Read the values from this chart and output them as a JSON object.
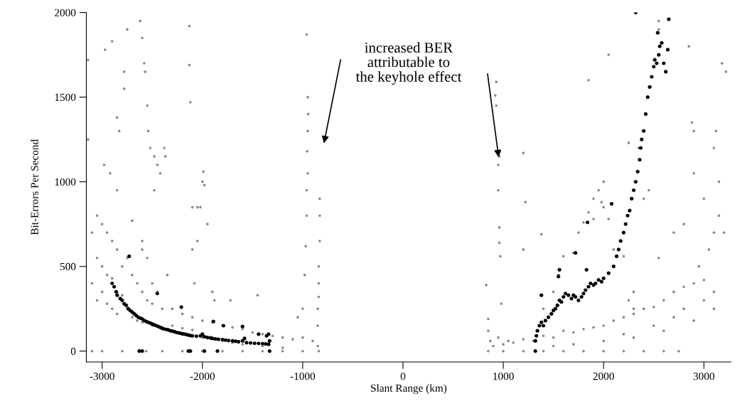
{
  "chart_data": {
    "type": "scatter",
    "xlabel": "Slant Range (km)",
    "ylabel": "Bit-Errors Per Second",
    "xlim": [
      -3157,
      3270
    ],
    "ylim": [
      -64,
      2000
    ],
    "xticks": [
      -3000,
      -2000,
      -1000,
      0,
      1000,
      2000,
      3000
    ],
    "yticks": [
      0,
      500,
      1000,
      1500,
      2000
    ],
    "grid": false,
    "legend": false,
    "marker": "circle",
    "annotations": [
      "increased BER\nattributable to\nthe keyhole effect"
    ],
    "series": [
      {
        "color": "#8c8c8c",
        "x": [
          -3100,
          -3100,
          -3050,
          -3050,
          -3050,
          -3000,
          -3000,
          -3000,
          -2950,
          -2950,
          -2950,
          -2900,
          -2900,
          -2900,
          -2850,
          -2850,
          -2850,
          -2800,
          -2800,
          -2750,
          -2750,
          -2700,
          -2700,
          -2650,
          -2650,
          -2600,
          -2600,
          -2600,
          -2550,
          -2500,
          -2500,
          -2450,
          -2400,
          -2400,
          -2300,
          -2300,
          -2200,
          -2200,
          -2100,
          -2100,
          -2000,
          -2000,
          -1900,
          -1900,
          -1800,
          -1800,
          -1700,
          -1700,
          -1600,
          -1600,
          -1500,
          -1400,
          -1400,
          -1300,
          -1200,
          -1200,
          -1100,
          -1000,
          -900,
          -850,
          -850,
          -850,
          -3100,
          -3000,
          -2800,
          -2560,
          -2400,
          -2200,
          -2000,
          -1800,
          -1600,
          -1400,
          -1200,
          -1000,
          -840,
          -3140,
          -3140,
          -2970,
          -2900,
          -2750,
          -2780,
          -2780,
          -2830,
          -2850,
          -2980,
          -2920,
          -2850,
          -2620,
          -2600,
          -2580,
          -2570,
          -2550,
          -2540,
          -2520,
          -2480,
          -2450,
          -2420,
          -2380,
          -2370,
          -2480,
          -2130,
          -2130,
          -2120,
          -2100,
          -2100,
          -2050,
          -2000,
          -1980,
          -1990,
          -2020,
          -2050,
          -1950,
          -2080,
          -1900,
          -1880,
          -960,
          -950,
          -945,
          -950,
          -955,
          -950,
          -960,
          -960,
          -970,
          -980,
          -1000,
          -1050,
          -830,
          -830,
          -830,
          -840,
          -840,
          -840,
          -2700,
          -2600,
          -2550,
          -2500,
          -2350,
          -1720,
          -1450,
          850,
          1000,
          1200,
          1400,
          1600,
          1800,
          2000,
          2200,
          2400,
          2600,
          2750,
          850,
          850,
          870,
          900,
          950,
          1000,
          1050,
          1100,
          1200,
          1300,
          1400,
          1500,
          1600,
          1700,
          1800,
          1900,
          2000,
          2100,
          2200,
          2300,
          2400,
          2500,
          2600,
          2700,
          2800,
          2900,
          3000,
          3100,
          1700,
          2000,
          2300,
          2600,
          2900,
          3100,
          2800,
          2500,
          2200,
          1500,
          2700,
          3000,
          2950,
          3050,
          3100,
          3150,
          3150,
          3100,
          3120,
          3200,
          3220,
          3180,
          2900,
          2880,
          2850,
          2900,
          2800,
          3000,
          2700,
          2550,
          930,
          920,
          930,
          960,
          950,
          950,
          960,
          960,
          970,
          980,
          830,
          1200,
          1220,
          1200,
          1380,
          1400,
          1500,
          1550,
          1600,
          1700,
          1750,
          1800,
          1850,
          1900,
          1950,
          1980,
          2000,
          2050,
          2000,
          1850,
          2050,
          1900,
          2100,
          2200,
          2250,
          2300,
          2300,
          2250,
          2350,
          2400,
          2450,
          2550,
          2550
        ],
        "values": [
          700,
          400,
          800,
          550,
          300,
          750,
          500,
          350,
          700,
          450,
          280,
          650,
          430,
          250,
          600,
          350,
          220,
          500,
          330,
          550,
          250,
          450,
          200,
          400,
          180,
          600,
          350,
          170,
          300,
          280,
          150,
          350,
          250,
          130,
          250,
          150,
          220,
          135,
          200,
          125,
          180,
          80,
          170,
          70,
          150,
          60,
          140,
          50,
          130,
          40,
          110,
          100,
          30,
          90,
          80,
          20,
          70,
          80,
          60,
          150,
          250,
          30,
          0,
          0,
          0,
          0,
          0,
          0,
          0,
          0,
          0,
          0,
          0,
          0,
          0,
          1720,
          1250,
          1780,
          1830,
          1900,
          1650,
          1550,
          1300,
          1380,
          1100,
          1050,
          950,
          1950,
          1850,
          1700,
          1650,
          1450,
          1300,
          1200,
          1150,
          1100,
          1050,
          1200,
          1150,
          950,
          1920,
          1690,
          1470,
          850,
          600,
          850,
          1000,
          980,
          1060,
          850,
          650,
          750,
          400,
          350,
          300,
          1870,
          1500,
          1400,
          1300,
          1180,
          1050,
          950,
          800,
          620,
          450,
          250,
          200,
          900,
          800,
          650,
          500,
          400,
          320,
          770,
          650,
          550,
          400,
          450,
          300,
          330,
          0,
          0,
          0,
          0,
          0,
          0,
          0,
          0,
          0,
          0,
          0,
          190,
          120,
          60,
          30,
          80,
          40,
          60,
          50,
          70,
          60,
          90,
          80,
          120,
          110,
          130,
          140,
          150,
          180,
          200,
          220,
          250,
          260,
          300,
          350,
          380,
          400,
          420,
          350,
          40,
          60,
          80,
          120,
          180,
          250,
          250,
          150,
          100,
          30,
          200,
          300,
          500,
          600,
          700,
          800,
          1000,
          1200,
          1300,
          700,
          1650,
          1700,
          1300,
          1350,
          1800,
          1050,
          750,
          900,
          700,
          550,
          1590,
          1510,
          1450,
          1150,
          1100,
          950,
          730,
          640,
          560,
          280,
          390,
          1170,
          880,
          600,
          690,
          250,
          350,
          450,
          560,
          580,
          700,
          760,
          820,
          900,
          950,
          880,
          850,
          780,
          1000,
          1600,
          1750,
          780,
          600,
          560,
          300,
          250,
          350,
          1230,
          1200,
          900,
          950,
          1900,
          1950
        ]
      },
      {
        "color": "#000000",
        "x": [
          -2900,
          -2880,
          -2860,
          -2850,
          -2820,
          -2800,
          -2780,
          -2760,
          -2740,
          -2720,
          -2700,
          -2680,
          -2660,
          -2640,
          -2620,
          -2600,
          -2580,
          -2560,
          -2540,
          -2520,
          -2500,
          -2480,
          -2460,
          -2440,
          -2420,
          -2400,
          -2380,
          -2360,
          -2340,
          -2320,
          -2300,
          -2280,
          -2260,
          -2240,
          -2220,
          -2200,
          -2180,
          -2160,
          -2140,
          -2120,
          -2100,
          -2060,
          -2020,
          -2000,
          -1980,
          -1950,
          -1920,
          -1900,
          -1870,
          -1840,
          -1800,
          -1770,
          -1740,
          -1700,
          -1670,
          -1640,
          -1600,
          -1580,
          -1560,
          -1520,
          -1480,
          -1440,
          -1400,
          -1370,
          -1340,
          -1330,
          -1330,
          -2730,
          -2450,
          -2210,
          -1890,
          -1790,
          -1600,
          -1440,
          -1340,
          -1360,
          -2630,
          -2600,
          -2140,
          -2120,
          -1980,
          -1850,
          1320,
          1320,
          1330,
          1340,
          1360,
          1380,
          1400,
          1420,
          1450,
          1480,
          1500,
          1520,
          1540,
          1560,
          1580,
          1600,
          1620,
          1650,
          1680,
          1700,
          1720,
          1750,
          1780,
          1800,
          1820,
          1850,
          1870,
          1900,
          1920,
          1950,
          1980,
          2000,
          2050,
          2100,
          2130,
          2150,
          2170,
          2200,
          2220,
          2240,
          2260,
          2280,
          2300,
          2320,
          2340,
          2360,
          2370,
          2380,
          2400,
          2420,
          2440,
          2460,
          2480,
          2500,
          2510,
          2530,
          2550,
          2560,
          2580,
          2600,
          2620,
          2640,
          2650,
          2320,
          2540,
          1560,
          1550,
          1720,
          1380,
          1840,
          1830,
          2080
        ],
        "values": [
          400,
          380,
          350,
          330,
          310,
          300,
          280,
          270,
          250,
          240,
          230,
          220,
          210,
          200,
          195,
          190,
          180,
          175,
          170,
          165,
          160,
          155,
          150,
          145,
          140,
          135,
          130,
          128,
          125,
          120,
          118,
          115,
          110,
          108,
          105,
          102,
          100,
          98,
          95,
          92,
          90,
          88,
          90,
          100,
          85,
          80,
          78,
          75,
          72,
          70,
          68,
          65,
          62,
          60,
          58,
          55,
          60,
          75,
          50,
          48,
          46,
          45,
          44,
          42,
          40,
          60,
          0,
          560,
          340,
          260,
          175,
          150,
          145,
          100,
          100,
          90,
          0,
          0,
          0,
          0,
          0,
          0,
          0,
          60,
          90,
          120,
          150,
          170,
          150,
          180,
          200,
          220,
          240,
          250,
          270,
          300,
          290,
          320,
          340,
          330,
          310,
          330,
          320,
          300,
          320,
          340,
          360,
          380,
          400,
          390,
          400,
          420,
          410,
          430,
          460,
          500,
          560,
          600,
          650,
          700,
          750,
          800,
          830,
          900,
          950,
          1000,
          1060,
          1130,
          1200,
          1250,
          1300,
          1400,
          1500,
          1560,
          1620,
          1680,
          1720,
          1700,
          1750,
          1800,
          1820,
          1700,
          1650,
          1780,
          1960,
          2000,
          1880,
          480,
          440,
          580,
          330,
          760,
          480,
          870
        ]
      }
    ]
  }
}
